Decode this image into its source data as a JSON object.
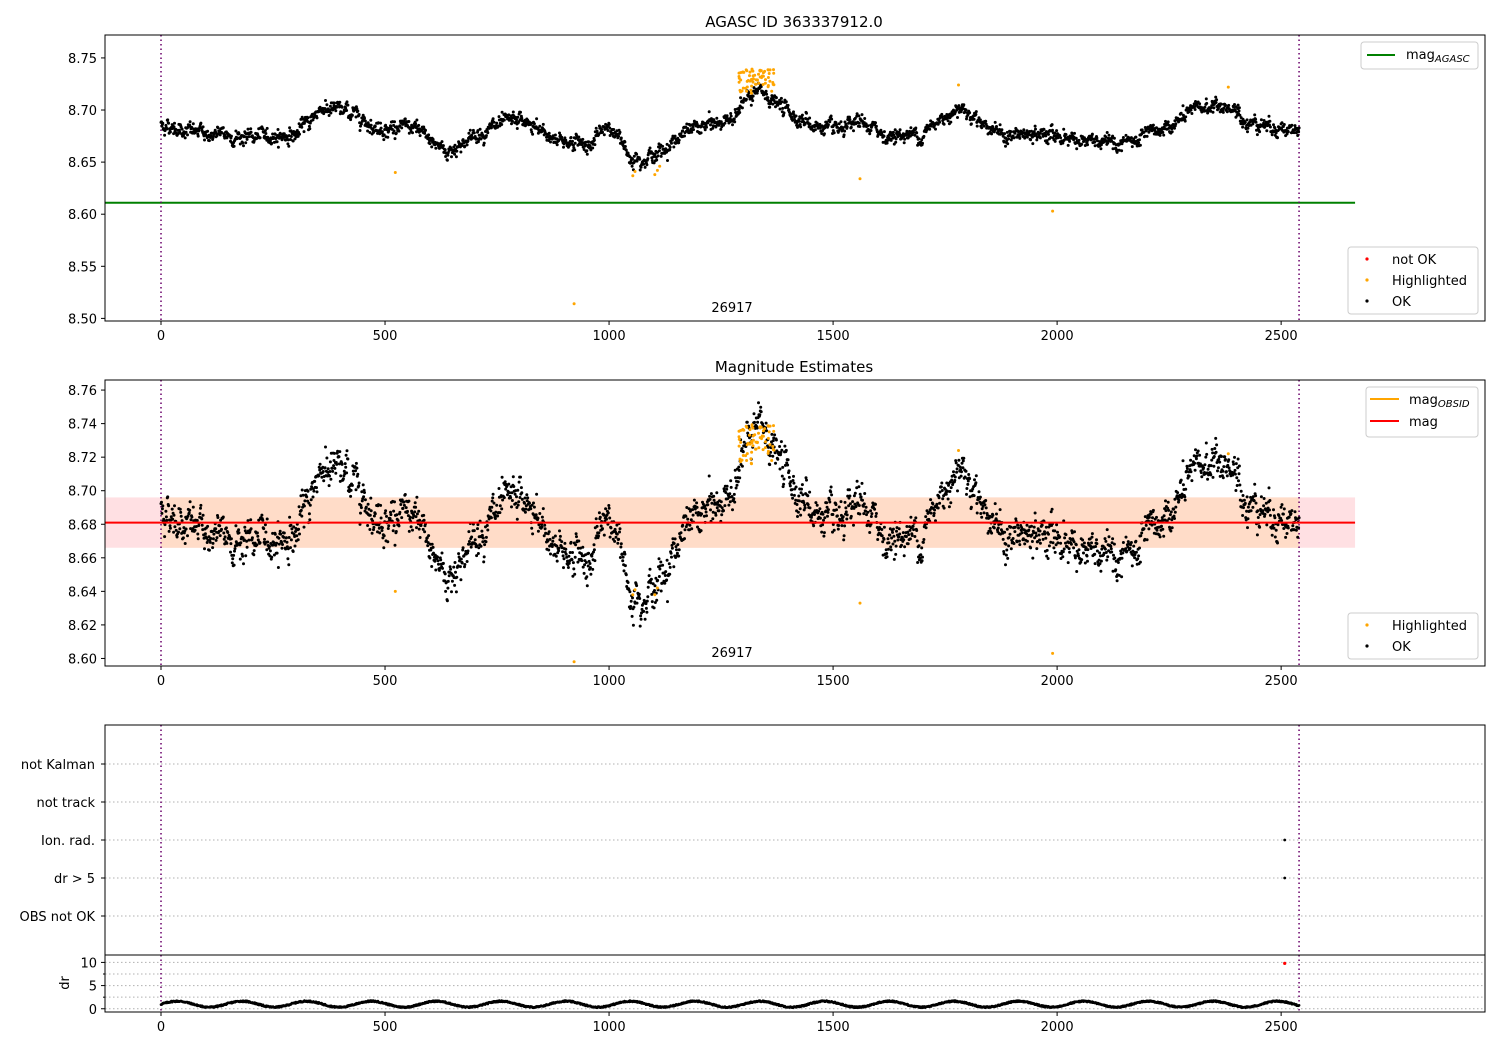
{
  "chart_data": [
    {
      "type": "scatter",
      "title": "AGASC ID 363337912.0",
      "xlim": [
        -125,
        2955
      ],
      "ylim": [
        8.4975,
        8.772
      ],
      "xticks": [
        0,
        500,
        1000,
        1500,
        2000,
        2500
      ],
      "xtick_labels": [
        "0",
        "500",
        "1000",
        "1500",
        "2000",
        "2500"
      ],
      "yticks": [
        8.5,
        8.55,
        8.6,
        8.65,
        8.7,
        8.75
      ],
      "ytick_labels": [
        "8.50",
        "8.55",
        "8.60",
        "8.65",
        "8.70",
        "8.75"
      ],
      "vlines": [
        0,
        2540
      ],
      "annotation": {
        "text": "26917",
        "x": 1270,
        "y": 8.497
      },
      "hline": {
        "name_main": "mag",
        "name_sub": "AGASC",
        "y": 8.611,
        "x_range": [
          -125,
          2665
        ],
        "color": "#008000"
      },
      "legend_upper": [
        {
          "label_main": "mag",
          "label_sub": "AGASC",
          "color": "#008000",
          "marker": "line"
        }
      ],
      "legend_lower": [
        {
          "label": "not OK",
          "color": "#ff0000",
          "marker": "dot"
        },
        {
          "label": "Highlighted",
          "color": "#ffa500",
          "marker": "dot"
        },
        {
          "label": "OK",
          "color": "#000000",
          "marker": "dot"
        }
      ],
      "points_ok": {
        "x_range": [
          0,
          2540
        ],
        "count": 2540,
        "baseline": [
          [
            0,
            8.686
          ],
          [
            100,
            8.677
          ],
          [
            200,
            8.674
          ],
          [
            300,
            8.676
          ],
          [
            360,
            8.703
          ],
          [
            440,
            8.696
          ],
          [
            480,
            8.683
          ],
          [
            560,
            8.683
          ],
          [
            640,
            8.66
          ],
          [
            720,
            8.68
          ],
          [
            800,
            8.69
          ],
          [
            880,
            8.672
          ],
          [
            960,
            8.667
          ],
          [
            1000,
            8.686
          ],
          [
            1050,
            8.655
          ],
          [
            1110,
            8.657
          ],
          [
            1150,
            8.673
          ],
          [
            1200,
            8.684
          ],
          [
            1260,
            8.688
          ],
          [
            1300,
            8.707
          ],
          [
            1340,
            8.718
          ],
          [
            1380,
            8.704
          ],
          [
            1450,
            8.686
          ],
          [
            1520,
            8.678
          ],
          [
            1560,
            8.688
          ],
          [
            1620,
            8.675
          ],
          [
            1700,
            8.677
          ],
          [
            1780,
            8.704
          ],
          [
            1830,
            8.69
          ],
          [
            1880,
            8.675
          ],
          [
            2000,
            8.676
          ],
          [
            2100,
            8.667
          ],
          [
            2180,
            8.67
          ],
          [
            2260,
            8.686
          ],
          [
            2320,
            8.703
          ],
          [
            2380,
            8.703
          ],
          [
            2420,
            8.69
          ],
          [
            2540,
            8.68
          ]
        ],
        "noise": 0.0045
      },
      "points_highlighted": {
        "cluster_x_range": [
          1290,
          1370
        ],
        "cluster_y_range": [
          8.716,
          8.74
        ],
        "cluster_count": 70,
        "outliers": [
          [
            523,
            8.64
          ],
          [
            922,
            8.514
          ],
          [
            1053,
            8.637
          ],
          [
            1058,
            8.641
          ],
          [
            1102,
            8.638
          ],
          [
            1108,
            8.642
          ],
          [
            1113,
            8.646
          ],
          [
            1560,
            8.634
          ],
          [
            1780,
            8.724
          ],
          [
            1990,
            8.603
          ],
          [
            2382,
            8.722
          ]
        ]
      }
    },
    {
      "type": "scatter",
      "title": "Magnitude Estimates",
      "xlim": [
        -125,
        2955
      ],
      "ylim": [
        8.5955,
        8.766
      ],
      "xticks": [
        0,
        500,
        1000,
        1500,
        2000,
        2500
      ],
      "xtick_labels": [
        "0",
        "500",
        "1000",
        "1500",
        "2000",
        "2500"
      ],
      "yticks": [
        8.6,
        8.62,
        8.64,
        8.66,
        8.68,
        8.7,
        8.72,
        8.74,
        8.76
      ],
      "ytick_labels": [
        "8.60",
        "8.62",
        "8.64",
        "8.66",
        "8.68",
        "8.70",
        "8.72",
        "8.74",
        "8.76"
      ],
      "vlines": [
        0,
        2540
      ],
      "annotation": {
        "text": "26917",
        "x": 1270,
        "y": 8.5955
      },
      "hline": {
        "name": "mag",
        "y": 8.681,
        "x_range": [
          -125,
          2665
        ],
        "color": "#ff0000"
      },
      "band": {
        "y_range": [
          8.666,
          8.696
        ],
        "x_range": [
          -125,
          2665
        ],
        "fill": "#ffe0e3",
        "inner_fill": "#ffdcc8",
        "inner_x_range": [
          0,
          2540
        ]
      },
      "legend_upper": [
        {
          "label_main": "mag",
          "label_sub": "OBSID",
          "color": "#ffa500",
          "marker": "line"
        },
        {
          "label": "mag",
          "color": "#ff0000",
          "marker": "line"
        }
      ],
      "legend_lower": [
        {
          "label": "Highlighted",
          "color": "#ffa500",
          "marker": "dot"
        },
        {
          "label": "OK",
          "color": "#000000",
          "marker": "dot"
        }
      ],
      "points_highlighted_outliers": [
        [
          523,
          8.64
        ],
        [
          922,
          8.598
        ],
        [
          1053,
          8.638
        ],
        [
          1058,
          8.641
        ],
        [
          1102,
          8.638
        ],
        [
          1108,
          8.642
        ],
        [
          1560,
          8.633
        ],
        [
          1780,
          8.724
        ],
        [
          1990,
          8.603
        ],
        [
          2382,
          8.722
        ]
      ]
    },
    {
      "type": "scatter",
      "xlim": [
        -125,
        2955
      ],
      "categories": [
        "not Kalman",
        "not track",
        "Ion. rad.",
        "dr > 5",
        "OBS not OK"
      ],
      "category_points": [
        {
          "category": "Ion. rad.",
          "x": 2508
        },
        {
          "category": "dr > 5",
          "x": 2508
        }
      ],
      "vlines": [
        0,
        2540
      ]
    },
    {
      "type": "scatter",
      "xlim": [
        -125,
        2955
      ],
      "ylim": [
        -0.7,
        11.6
      ],
      "ylabel": "dr",
      "xticks": [
        0,
        500,
        1000,
        1500,
        2000,
        2500
      ],
      "xtick_labels": [
        "0",
        "500",
        "1000",
        "1500",
        "2000",
        "2500"
      ],
      "yticks": [
        0,
        5,
        10
      ],
      "ytick_labels": [
        "0",
        "5",
        "10"
      ],
      "hgrid": [
        0,
        2.5,
        5,
        7.5,
        10
      ],
      "vlines": [
        0,
        2540
      ],
      "points_ok": {
        "x_range": [
          0,
          2540
        ],
        "count": 2540,
        "typical_range": [
          0.2,
          1.8
        ]
      },
      "points_not_ok": [
        [
          2508,
          9.8
        ]
      ]
    }
  ]
}
